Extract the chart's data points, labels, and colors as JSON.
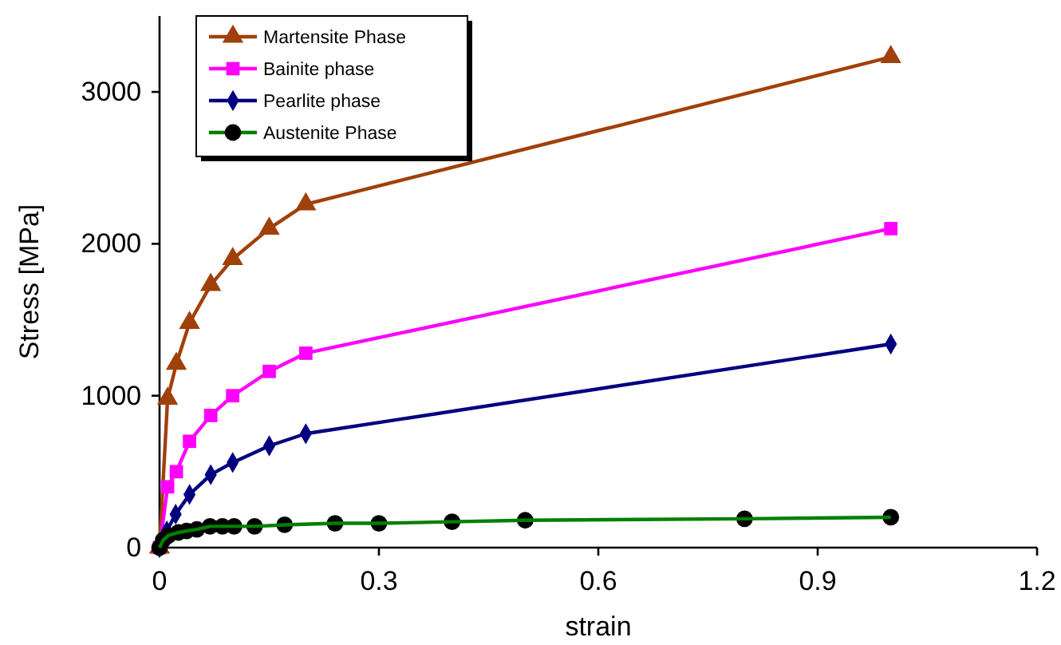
{
  "chart_data": {
    "type": "line",
    "xlabel": "strain",
    "ylabel": "Stress [MPa]",
    "xlim": [
      0,
      1.2
    ],
    "xticks": [
      0,
      0.3,
      0.6,
      0.9,
      1.2
    ],
    "ylim": [
      0,
      3500
    ],
    "yticks": [
      0,
      1000,
      2000,
      3000
    ],
    "grid": false,
    "legend": "top left",
    "series": [
      {
        "name": "Martensite Phase",
        "color": "#a0400a",
        "marker": "triangle",
        "x": [
          0,
          0.011,
          0.023,
          0.041,
          0.07,
          0.1,
          0.15,
          0.2,
          1.0
        ],
        "values": [
          0,
          980,
          1210,
          1480,
          1730,
          1900,
          2100,
          2260,
          3230
        ]
      },
      {
        "name": "Bainite phase",
        "color": "#ff00ff",
        "marker": "square",
        "x": [
          0,
          0.011,
          0.023,
          0.041,
          0.07,
          0.1,
          0.15,
          0.2,
          1.0
        ],
        "values": [
          0,
          400,
          500,
          700,
          870,
          1000,
          1160,
          1280,
          2100
        ]
      },
      {
        "name": "Pearlite phase",
        "color": "#000080",
        "marker": "diamond",
        "x": [
          0,
          0.01,
          0.022,
          0.041,
          0.07,
          0.1,
          0.15,
          0.2,
          1.0
        ],
        "values": [
          0,
          110,
          220,
          350,
          480,
          560,
          670,
          750,
          1340
        ]
      },
      {
        "name": "Austenite Phase",
        "color": "#008000",
        "marker": "circle",
        "x": [
          0,
          0.005,
          0.012,
          0.026,
          0.037,
          0.051,
          0.069,
          0.086,
          0.102,
          0.13,
          0.171,
          0.24,
          0.3,
          0.4,
          0.5,
          0.8,
          1.0
        ],
        "values": [
          0,
          50,
          80,
          100,
          110,
          120,
          140,
          140,
          140,
          140,
          150,
          160,
          160,
          170,
          180,
          190,
          200
        ]
      }
    ]
  }
}
